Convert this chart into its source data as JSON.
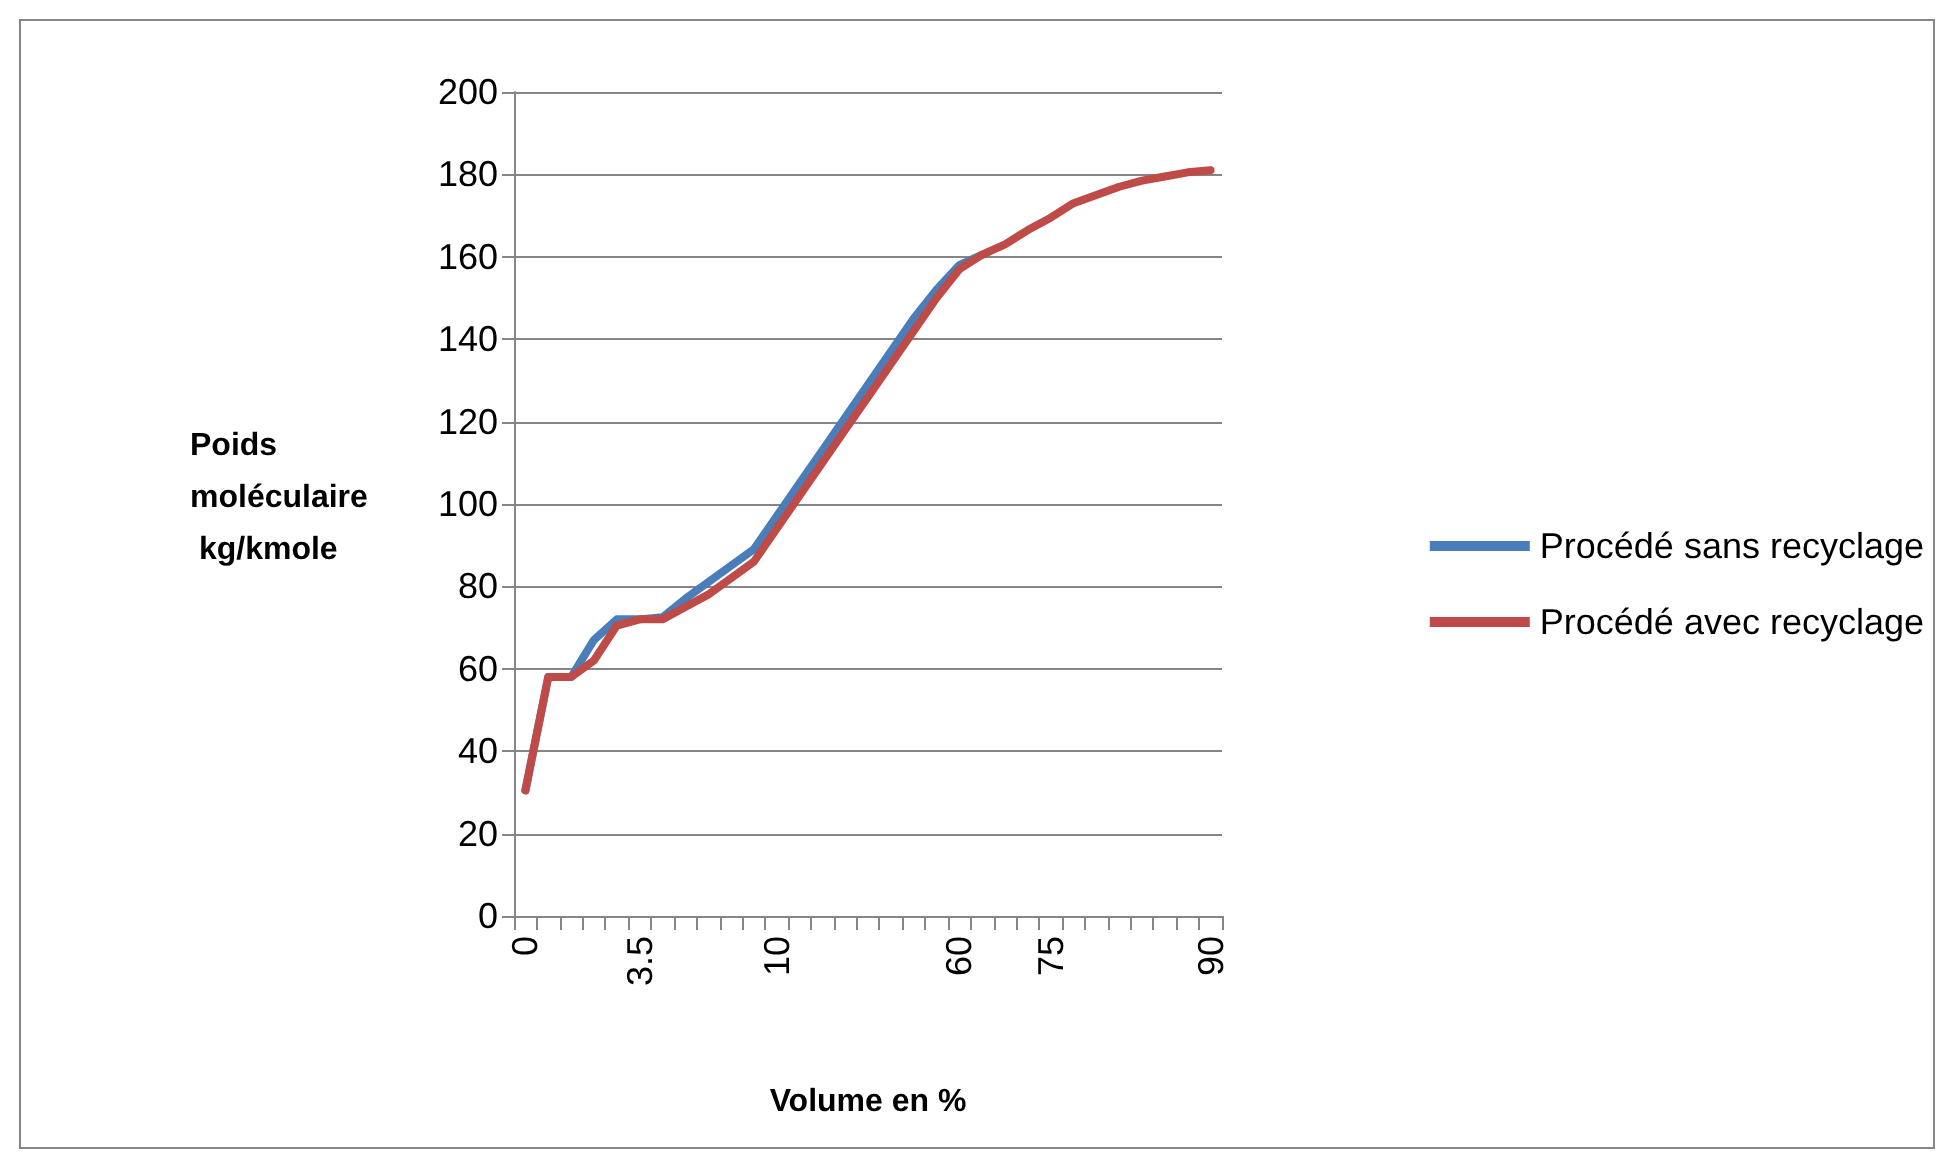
{
  "chart_data": {
    "type": "line",
    "xlabel": "Volume en %",
    "ylabel": "Poids moléculaire kg/kmole",
    "categories": [
      "0",
      null,
      null,
      null,
      null,
      "3.5",
      null,
      null,
      null,
      null,
      null,
      "10",
      null,
      null,
      null,
      null,
      null,
      null,
      null,
      "60",
      null,
      null,
      null,
      "75",
      null,
      null,
      null,
      null,
      null,
      null,
      "90"
    ],
    "series": [
      {
        "name": "Procédé sans recyclage",
        "color": "#4a7ebb",
        "values": [
          30.5,
          58,
          58,
          67,
          72,
          72,
          72.5,
          77,
          81,
          85,
          89,
          97,
          105,
          113,
          121,
          129,
          137,
          145,
          152,
          158,
          160.5,
          null,
          null,
          null,
          null,
          null,
          null,
          null,
          null,
          null,
          null
        ]
      },
      {
        "name": "Procédé avec recyclage",
        "color": "#be4b48",
        "values": [
          30.5,
          58,
          58,
          62,
          70.5,
          72,
          72,
          75,
          78,
          82,
          86,
          94,
          102,
          110,
          118,
          126,
          134,
          142,
          150,
          157,
          160.5,
          163,
          166.5,
          169.5,
          173,
          175,
          177,
          178.5,
          179.5,
          180.5,
          181
        ]
      }
    ],
    "ylim": [
      0,
      200
    ],
    "yticks": [
      0,
      20,
      40,
      60,
      80,
      100,
      120,
      140,
      160,
      180,
      200
    ],
    "grid": "y",
    "legend": "right",
    "marker": "none",
    "line_style": "solid"
  }
}
